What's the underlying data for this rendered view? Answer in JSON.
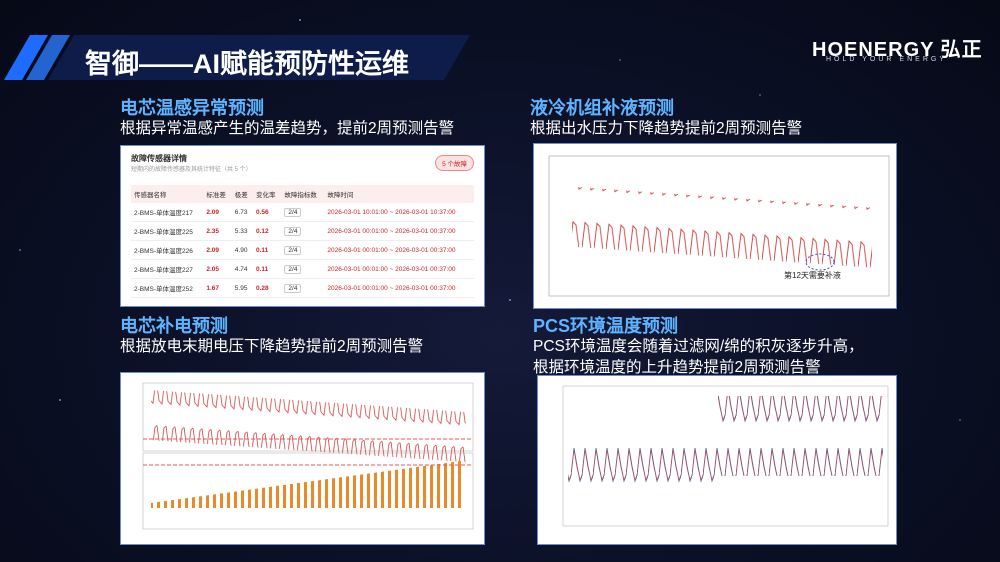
{
  "header": {
    "title": "智御——AI赋能预防性运维",
    "logo": "HOENERGY",
    "logo_cn": "弘正",
    "slogan": "HOLD YOUR ENERGY"
  },
  "sections": [
    {
      "heading": "电芯温感异常预测",
      "description_lines": [
        "根据异常温感产生的温差趋势，提前2周预测告警"
      ],
      "table": {
        "title": "故障传感器详情",
        "subtitle": "短期内的故障传感器及其统计特征（共 5 个）",
        "badge": "5 个故障",
        "columns": [
          "传感器名称",
          "标准差",
          "极差",
          "变化率",
          "故障指标数",
          "故障时间"
        ],
        "rows": [
          [
            "2-BMS-单体温度217",
            "2.09",
            "6.73",
            "0.56",
            "2/4",
            "2026-03-01 10:01:00 ~ 2026-03-01 10:37:00"
          ],
          [
            "2-BMS-单体温度225",
            "2.35",
            "5.33",
            "0.12",
            "2/4",
            "2026-03-01 00:01:00 ~ 2026-03-01 00:37:00"
          ],
          [
            "2-BMS-单体温度226",
            "2.09",
            "4.90",
            "0.11",
            "2/4",
            "2026-03-01 00:01:00 ~ 2026-03-01 00:37:00"
          ],
          [
            "2-BMS-单体温度227",
            "2.05",
            "4.74",
            "0.11",
            "2/4",
            "2026-03-01 00:01:00 ~ 2026-03-01 00:37:00"
          ],
          [
            "2-BMS-单体温度252",
            "1.67",
            "5.95",
            "0.28",
            "2/4",
            "2026-03-01 00:01:00 ~ 2026-03-01 00:37:00"
          ]
        ]
      }
    },
    {
      "heading": "液冷机组补液预测",
      "description_lines": [
        "根据出水压力下降趋势提前2周预测告警"
      ],
      "annotation": "第12天需要补液"
    },
    {
      "heading": "电芯补电预测",
      "description_lines": [
        "根据放电末期电压下降趋势提前2周预测告警"
      ]
    },
    {
      "heading": "PCS环境温度预测",
      "description_lines": [
        "PCS环境温度会随着过滤网/绵的积灰逐步升高，",
        "根据环境温度的上升趋势提前2周预测告警"
      ]
    }
  ]
}
